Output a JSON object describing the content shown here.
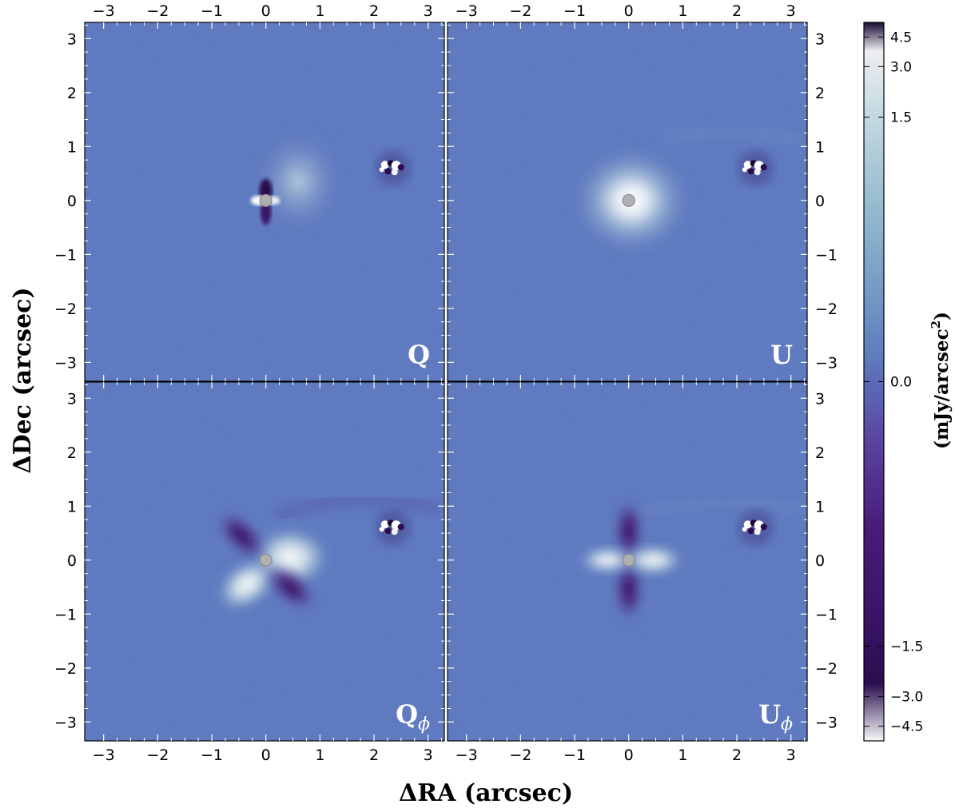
{
  "chart_data": {
    "type": "heatmap",
    "xlabel": "ΔRA (arcsec)",
    "ylabel": "ΔDec (arcsec)",
    "xlim": [
      -3.35,
      3.3
    ],
    "ylim": [
      -3.35,
      3.3
    ],
    "x_ticks": [
      -3,
      -2,
      -1,
      0,
      1,
      2,
      3
    ],
    "y_ticks": [
      -3,
      -2,
      -1,
      0,
      1,
      2,
      3
    ],
    "tick_labels": [
      "−3",
      "−2",
      "−1",
      "0",
      "1",
      "2",
      "3"
    ],
    "panels": [
      {
        "label_main": "Q",
        "label_sub": "",
        "pattern": "Q"
      },
      {
        "label_main": "U",
        "label_sub": "",
        "pattern": "U"
      },
      {
        "label_main": "Q",
        "label_sub": "ϕ",
        "pattern": "Qphi"
      },
      {
        "label_main": "U",
        "label_sub": "ϕ",
        "pattern": "Uphi"
      }
    ],
    "features": {
      "star_position": [
        0,
        0
      ],
      "companion_position": [
        2.35,
        0.6
      ],
      "masked_center": true
    },
    "colorbar": {
      "label_main": "(mJy/arcsec",
      "label_sup": "2",
      "label_end": ")",
      "scale": "symmetric-log",
      "range": [
        -5.5,
        5.5
      ],
      "ticks": [
        4.5,
        3.0,
        1.5,
        0.0,
        -1.5,
        -3.0,
        -4.5
      ],
      "tick_labels": [
        "4.5",
        "3.0",
        "1.5",
        "0.0",
        "−1.5",
        "−3.0",
        "−4.5"
      ],
      "colormap": [
        "#1a0a33",
        "#3a1466",
        "#5a2b91",
        "#5b6ab6",
        "#6a98c6",
        "#8fbfd0",
        "#d0e0e6",
        "#f8f8fa"
      ]
    },
    "background_color": "#5c77be"
  }
}
